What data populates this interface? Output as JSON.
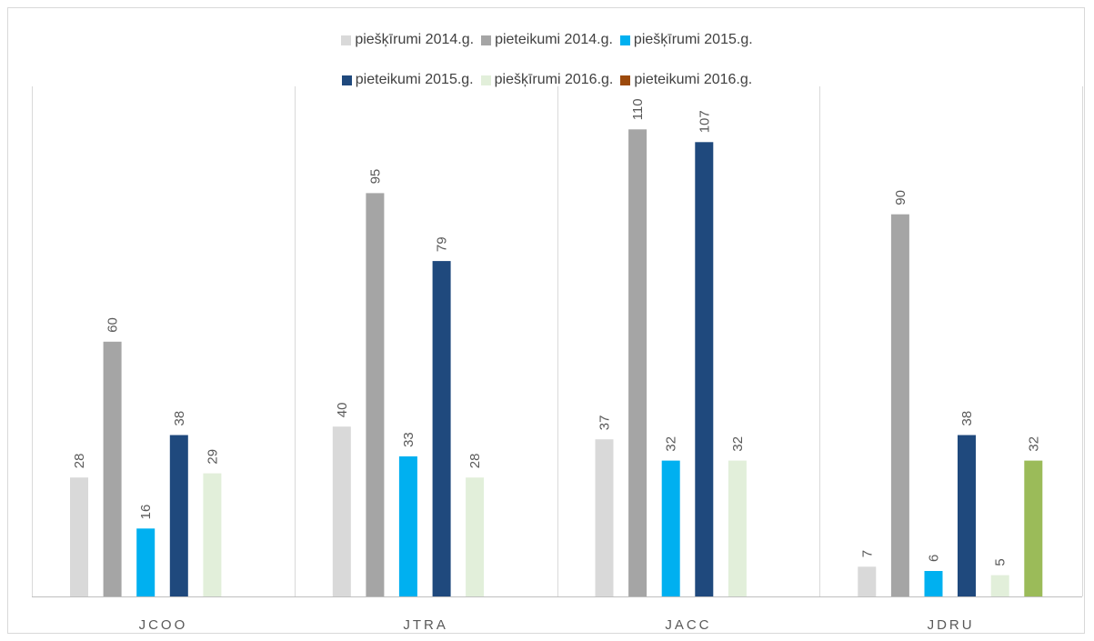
{
  "chart_data": {
    "type": "bar",
    "title": "",
    "xlabel": "",
    "ylabel": "",
    "ylim": [
      0,
      120
    ],
    "categories": [
      "JCOO",
      "JTRA",
      "JACC",
      "JDRU"
    ],
    "series": [
      {
        "name": "piešķīrumi 2014.g.",
        "color": "#d9d9d9",
        "values": [
          28,
          40,
          37,
          7
        ]
      },
      {
        "name": "pieteikumi 2014.g.",
        "color": "#a5a5a5",
        "values": [
          60,
          95,
          110,
          90
        ]
      },
      {
        "name": "piešķīrumi 2015.g.",
        "color": "#00b0f0",
        "values": [
          16,
          33,
          32,
          6
        ]
      },
      {
        "name": "pieteikumi 2015.g.",
        "color": "#1f497d",
        "values": [
          38,
          79,
          107,
          38
        ]
      },
      {
        "name": "piešķīrumi 2016.g.",
        "color": "#e2efda",
        "values": [
          29,
          28,
          32,
          5
        ]
      },
      {
        "name": "pieteikumi 2016.g.",
        "color": "#9bbb59",
        "legend_color": "#9c4a0c",
        "values": [
          null,
          null,
          null,
          32
        ]
      }
    ],
    "legend_position": "top",
    "grid": false,
    "category_separators": true
  }
}
